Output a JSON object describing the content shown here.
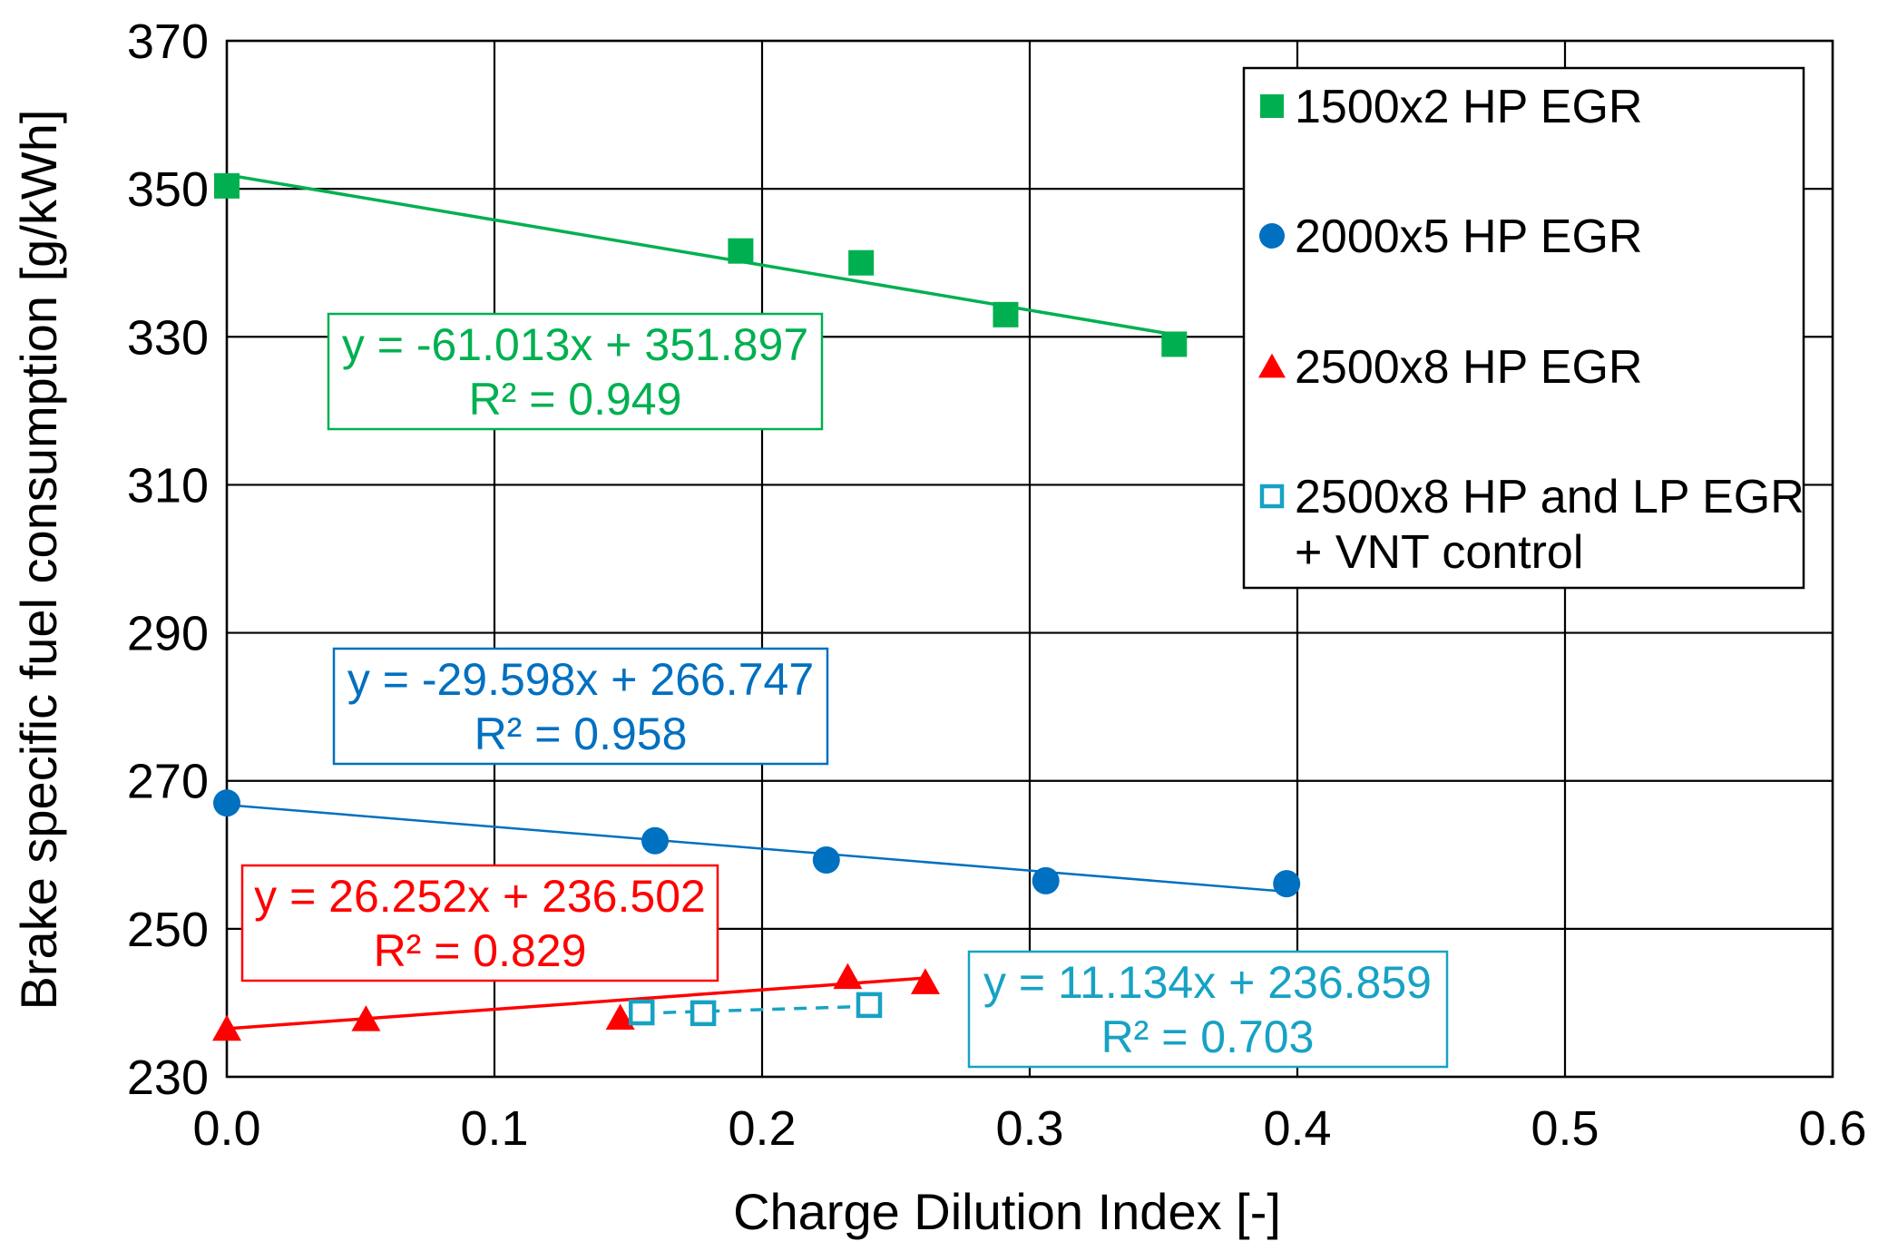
{
  "chart_data": {
    "type": "scatter",
    "xlabel": "Charge Dilution Index [-]",
    "ylabel": "Brake specific fuel consumption [g/kWh]",
    "xlim": [
      0.0,
      0.6
    ],
    "ylim": [
      230,
      370
    ],
    "x_ticks": [
      "0.0",
      "0.1",
      "0.2",
      "0.3",
      "0.4",
      "0.5",
      "0.6"
    ],
    "y_ticks": [
      "230",
      "250",
      "270",
      "290",
      "310",
      "330",
      "350",
      "370"
    ],
    "grid": true,
    "legend_position": "top-right",
    "series": [
      {
        "name": "1500x2 HP EGR",
        "color": "#00b050",
        "marker": "square",
        "x": [
          0.0,
          0.192,
          0.237,
          0.291,
          0.354
        ],
        "y": [
          350.4,
          341.6,
          340.0,
          333.0,
          329.0
        ],
        "trendline": {
          "slope": -61.013,
          "intercept": 351.897,
          "x_range": [
            0.0,
            0.354
          ],
          "dashed": false,
          "equation": "y = -61.013x + 351.897",
          "r2": "R² = 0.949"
        }
      },
      {
        "name": "2000x5 HP EGR",
        "color": "#0070c0",
        "marker": "circle",
        "x": [
          0.0,
          0.16,
          0.224,
          0.306,
          0.396
        ],
        "y": [
          267.0,
          261.9,
          259.3,
          256.5,
          256.1
        ],
        "trendline": {
          "slope": -29.598,
          "intercept": 266.747,
          "x_range": [
            0.0,
            0.396
          ],
          "dashed": false,
          "equation": "y = -29.598x + 266.747",
          "r2": "R² = 0.958"
        }
      },
      {
        "name": "2500x8 HP EGR",
        "color": "#ff0000",
        "marker": "triangle",
        "x": [
          0.0,
          0.052,
          0.147,
          0.232,
          0.261
        ],
        "y": [
          236.5,
          237.8,
          238.0,
          243.5,
          242.8
        ],
        "trendline": {
          "slope": 26.252,
          "intercept": 236.502,
          "x_range": [
            0.0,
            0.261
          ],
          "dashed": false,
          "equation": "y = 26.252x + 236.502",
          "r2": "R² = 0.829"
        }
      },
      {
        "name": "2500x8 HP and LP EGR + VNT control",
        "legend_lines": [
          "2500x8 HP and LP EGR",
          "+ VNT control"
        ],
        "color": "#17a2c4",
        "marker": "open-square",
        "x": [
          0.155,
          0.178,
          0.24
        ],
        "y": [
          238.7,
          238.6,
          239.7
        ],
        "trendline": {
          "slope": 11.134,
          "intercept": 236.859,
          "x_range": [
            0.155,
            0.24
          ],
          "dashed": true,
          "equation": "y = 11.134x + 236.859",
          "r2": "R² = 0.703"
        }
      }
    ]
  }
}
